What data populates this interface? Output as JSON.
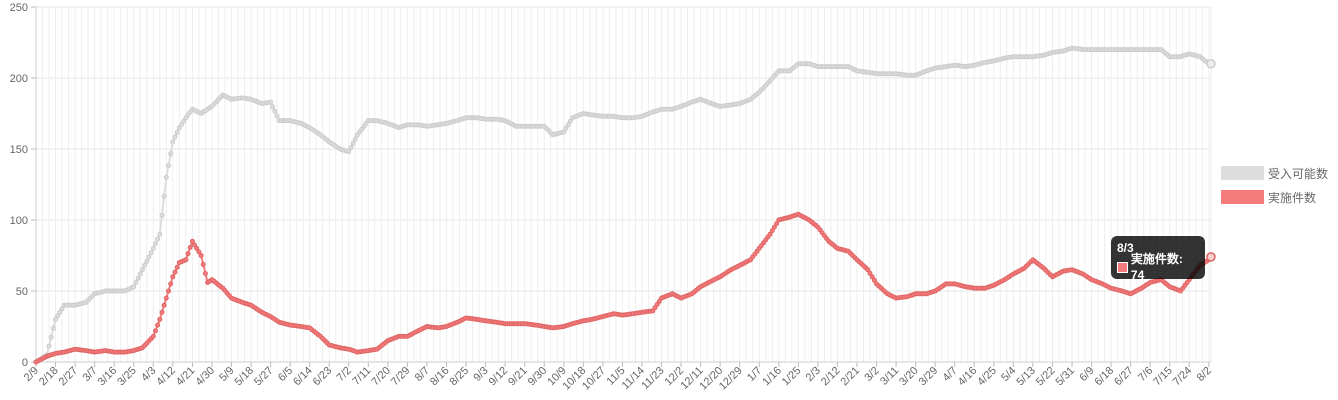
{
  "chart_data": {
    "type": "line",
    "title": "",
    "xlabel": "",
    "ylabel": "",
    "ylim": [
      0,
      250
    ],
    "yticks": [
      0,
      50,
      100,
      150,
      200,
      250
    ],
    "grid": true,
    "legend_position": "right",
    "x_tick_labels": [
      "2/9",
      "2/18",
      "2/27",
      "3/7",
      "3/16",
      "3/25",
      "4/3",
      "4/12",
      "4/21",
      "4/30",
      "5/9",
      "5/18",
      "5/27",
      "6/5",
      "6/14",
      "6/23",
      "7/2",
      "7/11",
      "7/20",
      "7/29",
      "8/7",
      "8/16",
      "8/25",
      "9/3",
      "9/12",
      "9/21",
      "9/30",
      "10/9",
      "10/18",
      "10/27",
      "11/5",
      "11/14",
      "11/23",
      "12/2",
      "12/11",
      "12/20",
      "12/29",
      "1/7",
      "1/16",
      "1/25",
      "2/3",
      "2/12",
      "2/21",
      "3/2",
      "3/11",
      "3/20",
      "3/29",
      "4/7",
      "4/16",
      "4/25",
      "5/4",
      "5/13",
      "5/22",
      "5/31",
      "6/9",
      "6/18",
      "6/27",
      "7/6",
      "7/15",
      "7/24",
      "8/2"
    ],
    "series": [
      {
        "name": "受入可能数",
        "color": "#dddddd",
        "points": [
          [
            "2/9",
            0
          ],
          [
            "2/14",
            5
          ],
          [
            "2/18",
            30
          ],
          [
            "2/22",
            40
          ],
          [
            "2/27",
            40
          ],
          [
            "3/3",
            42
          ],
          [
            "3/7",
            48
          ],
          [
            "3/12",
            50
          ],
          [
            "3/16",
            50
          ],
          [
            "3/21",
            50
          ],
          [
            "3/25",
            53
          ],
          [
            "3/29",
            65
          ],
          [
            "4/3",
            80
          ],
          [
            "4/6",
            90
          ],
          [
            "4/9",
            130
          ],
          [
            "4/12",
            155
          ],
          [
            "4/15",
            165
          ],
          [
            "4/18",
            172
          ],
          [
            "4/21",
            178
          ],
          [
            "4/25",
            175
          ],
          [
            "4/30",
            180
          ],
          [
            "5/5",
            188
          ],
          [
            "5/9",
            185
          ],
          [
            "5/14",
            186
          ],
          [
            "5/18",
            185
          ],
          [
            "5/23",
            182
          ],
          [
            "5/27",
            183
          ],
          [
            "5/31",
            170
          ],
          [
            "6/5",
            170
          ],
          [
            "6/10",
            168
          ],
          [
            "6/14",
            165
          ],
          [
            "6/19",
            160
          ],
          [
            "6/23",
            155
          ],
          [
            "6/28",
            150
          ],
          [
            "7/2",
            148
          ],
          [
            "7/6",
            160
          ],
          [
            "7/11",
            170
          ],
          [
            "7/15",
            170
          ],
          [
            "7/20",
            168
          ],
          [
            "7/25",
            165
          ],
          [
            "7/29",
            167
          ],
          [
            "8/3",
            167
          ],
          [
            "8/7",
            166
          ],
          [
            "8/12",
            167
          ],
          [
            "8/16",
            168
          ],
          [
            "8/21",
            170
          ],
          [
            "8/25",
            172
          ],
          [
            "8/30",
            172
          ],
          [
            "9/3",
            171
          ],
          [
            "9/8",
            171
          ],
          [
            "9/12",
            170
          ],
          [
            "9/17",
            166
          ],
          [
            "9/21",
            166
          ],
          [
            "9/26",
            166
          ],
          [
            "9/30",
            166
          ],
          [
            "10/4",
            160
          ],
          [
            "10/9",
            162
          ],
          [
            "10/13",
            172
          ],
          [
            "10/18",
            175
          ],
          [
            "10/22",
            174
          ],
          [
            "10/27",
            173
          ],
          [
            "11/1",
            173
          ],
          [
            "11/5",
            172
          ],
          [
            "11/10",
            172
          ],
          [
            "11/14",
            173
          ],
          [
            "11/19",
            176
          ],
          [
            "11/23",
            178
          ],
          [
            "11/28",
            178
          ],
          [
            "12/2",
            180
          ],
          [
            "12/7",
            183
          ],
          [
            "12/11",
            185
          ],
          [
            "12/16",
            182
          ],
          [
            "12/20",
            180
          ],
          [
            "12/25",
            181
          ],
          [
            "12/29",
            182
          ],
          [
            "1/3",
            185
          ],
          [
            "1/7",
            190
          ],
          [
            "1/12",
            198
          ],
          [
            "1/16",
            205
          ],
          [
            "1/21",
            205
          ],
          [
            "1/25",
            210
          ],
          [
            "1/30",
            210
          ],
          [
            "2/3",
            208
          ],
          [
            "2/8",
            208
          ],
          [
            "2/12",
            208
          ],
          [
            "2/17",
            208
          ],
          [
            "2/21",
            205
          ],
          [
            "2/26",
            204
          ],
          [
            "3/2",
            203
          ],
          [
            "3/7",
            203
          ],
          [
            "3/11",
            203
          ],
          [
            "3/16",
            202
          ],
          [
            "3/20",
            202
          ],
          [
            "3/25",
            205
          ],
          [
            "3/29",
            207
          ],
          [
            "4/3",
            208
          ],
          [
            "4/7",
            209
          ],
          [
            "4/12",
            208
          ],
          [
            "4/16",
            209
          ],
          [
            "4/21",
            211
          ],
          [
            "4/25",
            212
          ],
          [
            "4/30",
            214
          ],
          [
            "5/4",
            215
          ],
          [
            "5/9",
            215
          ],
          [
            "5/13",
            215
          ],
          [
            "5/18",
            216
          ],
          [
            "5/22",
            218
          ],
          [
            "5/27",
            219
          ],
          [
            "5/31",
            221
          ],
          [
            "6/5",
            220
          ],
          [
            "6/9",
            220
          ],
          [
            "6/14",
            220
          ],
          [
            "6/18",
            220
          ],
          [
            "6/23",
            220
          ],
          [
            "6/27",
            220
          ],
          [
            "7/2",
            220
          ],
          [
            "7/6",
            220
          ],
          [
            "7/11",
            220
          ],
          [
            "7/15",
            215
          ],
          [
            "7/20",
            215
          ],
          [
            "7/24",
            217
          ],
          [
            "7/29",
            215
          ],
          [
            "8/2",
            210
          ],
          [
            "8/3",
            210
          ]
        ]
      },
      {
        "name": "実施件数",
        "color": "#f47c7c",
        "points": [
          [
            "2/9",
            0
          ],
          [
            "2/14",
            4
          ],
          [
            "2/18",
            6
          ],
          [
            "2/22",
            7
          ],
          [
            "2/27",
            9
          ],
          [
            "3/3",
            8
          ],
          [
            "3/7",
            7
          ],
          [
            "3/12",
            8
          ],
          [
            "3/16",
            7
          ],
          [
            "3/21",
            7
          ],
          [
            "3/25",
            8
          ],
          [
            "3/29",
            10
          ],
          [
            "4/3",
            18
          ],
          [
            "4/6",
            30
          ],
          [
            "4/9",
            45
          ],
          [
            "4/12",
            60
          ],
          [
            "4/15",
            70
          ],
          [
            "4/18",
            72
          ],
          [
            "4/21",
            85
          ],
          [
            "4/25",
            75
          ],
          [
            "4/28",
            56
          ],
          [
            "4/30",
            58
          ],
          [
            "5/5",
            52
          ],
          [
            "5/9",
            45
          ],
          [
            "5/14",
            42
          ],
          [
            "5/18",
            40
          ],
          [
            "5/23",
            35
          ],
          [
            "5/27",
            32
          ],
          [
            "5/31",
            28
          ],
          [
            "6/5",
            26
          ],
          [
            "6/10",
            25
          ],
          [
            "6/14",
            24
          ],
          [
            "6/19",
            18
          ],
          [
            "6/23",
            12
          ],
          [
            "6/28",
            10
          ],
          [
            "7/2",
            9
          ],
          [
            "7/6",
            7
          ],
          [
            "7/11",
            8
          ],
          [
            "7/15",
            9
          ],
          [
            "7/20",
            15
          ],
          [
            "7/25",
            18
          ],
          [
            "7/29",
            18
          ],
          [
            "8/3",
            22
          ],
          [
            "8/7",
            25
          ],
          [
            "8/12",
            24
          ],
          [
            "8/16",
            25
          ],
          [
            "8/21",
            28
          ],
          [
            "8/25",
            31
          ],
          [
            "8/30",
            30
          ],
          [
            "9/3",
            29
          ],
          [
            "9/8",
            28
          ],
          [
            "9/12",
            27
          ],
          [
            "9/17",
            27
          ],
          [
            "9/21",
            27
          ],
          [
            "9/26",
            26
          ],
          [
            "9/30",
            25
          ],
          [
            "10/4",
            24
          ],
          [
            "10/9",
            25
          ],
          [
            "10/13",
            27
          ],
          [
            "10/18",
            29
          ],
          [
            "10/22",
            30
          ],
          [
            "10/27",
            32
          ],
          [
            "11/1",
            34
          ],
          [
            "11/5",
            33
          ],
          [
            "11/10",
            34
          ],
          [
            "11/14",
            35
          ],
          [
            "11/19",
            36
          ],
          [
            "11/23",
            45
          ],
          [
            "11/28",
            48
          ],
          [
            "12/2",
            45
          ],
          [
            "12/7",
            48
          ],
          [
            "12/11",
            53
          ],
          [
            "12/16",
            57
          ],
          [
            "12/20",
            60
          ],
          [
            "12/25",
            65
          ],
          [
            "12/29",
            68
          ],
          [
            "1/3",
            72
          ],
          [
            "1/7",
            80
          ],
          [
            "1/12",
            90
          ],
          [
            "1/16",
            100
          ],
          [
            "1/21",
            102
          ],
          [
            "1/25",
            104
          ],
          [
            "1/30",
            100
          ],
          [
            "2/3",
            95
          ],
          [
            "2/8",
            85
          ],
          [
            "2/12",
            80
          ],
          [
            "2/17",
            78
          ],
          [
            "2/21",
            72
          ],
          [
            "2/26",
            65
          ],
          [
            "3/2",
            55
          ],
          [
            "3/7",
            48
          ],
          [
            "3/11",
            45
          ],
          [
            "3/16",
            46
          ],
          [
            "3/20",
            48
          ],
          [
            "3/25",
            48
          ],
          [
            "3/29",
            50
          ],
          [
            "4/3",
            55
          ],
          [
            "4/7",
            55
          ],
          [
            "4/12",
            53
          ],
          [
            "4/16",
            52
          ],
          [
            "4/21",
            52
          ],
          [
            "4/25",
            54
          ],
          [
            "4/30",
            58
          ],
          [
            "5/4",
            62
          ],
          [
            "5/9",
            66
          ],
          [
            "5/13",
            72
          ],
          [
            "5/18",
            66
          ],
          [
            "5/22",
            60
          ],
          [
            "5/27",
            64
          ],
          [
            "5/31",
            65
          ],
          [
            "6/5",
            62
          ],
          [
            "6/9",
            58
          ],
          [
            "6/14",
            55
          ],
          [
            "6/18",
            52
          ],
          [
            "6/23",
            50
          ],
          [
            "6/27",
            48
          ],
          [
            "7/2",
            52
          ],
          [
            "7/6",
            56
          ],
          [
            "7/11",
            58
          ],
          [
            "7/15",
            53
          ],
          [
            "7/20",
            50
          ],
          [
            "7/24",
            58
          ],
          [
            "7/29",
            68
          ],
          [
            "8/2",
            72
          ],
          [
            "8/3",
            74
          ]
        ]
      }
    ],
    "tooltip": {
      "title": "8/3",
      "label": "実施件数: 74"
    }
  },
  "legend": {
    "items": [
      {
        "label": "受入可能数",
        "color": "#dddddd"
      },
      {
        "label": "実施件数",
        "color": "#f47c7c"
      }
    ]
  }
}
